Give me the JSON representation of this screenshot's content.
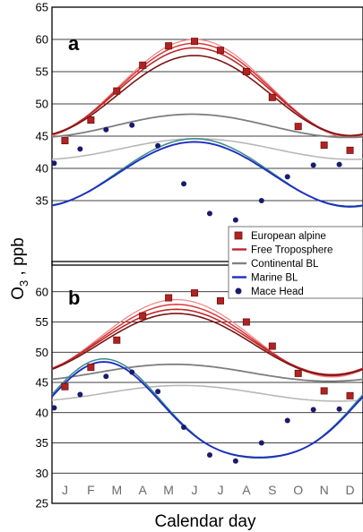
{
  "chart_data": {
    "type": "line",
    "xlabel": "Calendar day",
    "ylabel_main": "O",
    "ylabel_sub": "3",
    "ylabel_rest": " , ppb",
    "month_labels": [
      "J",
      "F",
      "M",
      "A",
      "M",
      "J",
      "J",
      "A",
      "S",
      "O",
      "N",
      "D"
    ],
    "legend": [
      {
        "name": "European alpine",
        "kind": "square",
        "color": "#b22222"
      },
      {
        "name": "Free Troposphere",
        "kind": "line",
        "color": "#c0282a"
      },
      {
        "name": "Continental BL",
        "kind": "line",
        "color": "#808080"
      },
      {
        "name": "Marine BL",
        "kind": "line",
        "color": "#1e2fbf"
      },
      {
        "name": "Mace Head",
        "kind": "dot",
        "color": "#1a1a6e"
      }
    ],
    "legend_placement": "right, between panels",
    "panels": [
      {
        "label": "a",
        "ylim": [
          25,
          65
        ],
        "yticks": [
          35,
          40,
          45,
          50,
          55,
          60,
          65
        ],
        "grid": true,
        "alpine_points": [
          44.3,
          47.5,
          52.0,
          56.0,
          59.0,
          59.7,
          58.3,
          55.0,
          51.0,
          46.5,
          43.6,
          42.8
        ],
        "mace_points": [
          40.8,
          43.0,
          46.0,
          46.7,
          43.5,
          37.6,
          33.0,
          32.0,
          35.0,
          38.7,
          40.5,
          40.6
        ],
        "curves": [
          {
            "series": "Free Troposphere",
            "color": "#ef8a8a",
            "width": 1.3,
            "mean": 52.4,
            "amp": 7.6,
            "peak_month": 6.0,
            "amp2": 0
          },
          {
            "series": "Free Troposphere",
            "color": "#d93a3a",
            "width": 1.5,
            "mean": 52.2,
            "amp": 7.2,
            "peak_month": 6.0,
            "amp2": 0
          },
          {
            "series": "Free Troposphere",
            "color": "#c0282a",
            "width": 1.6,
            "mean": 51.9,
            "amp": 6.8,
            "peak_month": 6.0,
            "amp2": 0
          },
          {
            "series": "Free Troposphere",
            "color": "#7a1515",
            "width": 1.6,
            "mean": 51.3,
            "amp": 6.2,
            "peak_month": 6.0,
            "amp2": 0
          },
          {
            "series": "Continental BL",
            "color": "#b8b8b8",
            "width": 1.6,
            "mean": 43.0,
            "amp": 1.6,
            "peak_month": 6.1,
            "amp2": 0
          },
          {
            "series": "Continental BL",
            "color": "#7e7e7e",
            "width": 1.8,
            "mean": 46.6,
            "amp": 1.8,
            "peak_month": 5.9,
            "amp2": 0
          },
          {
            "series": "Marine BL",
            "color": "#3a8a8a",
            "width": 1.5,
            "mean": 39.3,
            "amp": 5.3,
            "peak_month": 6.0,
            "amp2": 0
          },
          {
            "series": "Marine BL",
            "color": "#1e2fbf",
            "width": 1.9,
            "mean": 39.1,
            "amp": 5.0,
            "peak_month": 6.0,
            "amp2": 0
          }
        ]
      },
      {
        "label": "b",
        "ylim": [
          25,
          65
        ],
        "yticks": [
          25,
          30,
          35,
          40,
          45,
          50,
          55,
          60
        ],
        "grid": true,
        "alpine_points": [
          44.3,
          47.5,
          52.0,
          56.0,
          59.0,
          59.8,
          58.5,
          55.0,
          51.0,
          46.5,
          43.6,
          42.8
        ],
        "mace_points": [
          40.8,
          43.0,
          46.0,
          46.7,
          43.5,
          37.6,
          33.0,
          32.0,
          35.0,
          38.7,
          40.5,
          40.6
        ],
        "curves": [
          {
            "series": "Free Troposphere",
            "color": "#ef8a8a",
            "width": 1.3,
            "mean": 52.3,
            "amp": 6.4,
            "peak_month": 5.3,
            "amp2": 0
          },
          {
            "series": "Free Troposphere",
            "color": "#d93a3a",
            "width": 1.5,
            "mean": 52.0,
            "amp": 5.9,
            "peak_month": 5.3,
            "amp2": 0
          },
          {
            "series": "Free Troposphere",
            "color": "#c0282a",
            "width": 1.6,
            "mean": 51.7,
            "amp": 5.4,
            "peak_month": 5.3,
            "amp2": 0
          },
          {
            "series": "Free Troposphere",
            "color": "#7a1515",
            "width": 1.6,
            "mean": 51.3,
            "amp": 5.1,
            "peak_month": 5.3,
            "amp2": 0
          },
          {
            "series": "Continental BL",
            "color": "#b8b8b8",
            "width": 1.6,
            "mean": 43.2,
            "amp": 1.3,
            "peak_month": 5.5,
            "amp2": 0
          },
          {
            "series": "Continental BL",
            "color": "#7e7e7e",
            "width": 1.8,
            "mean": 46.6,
            "amp": 1.4,
            "peak_month": 5.2,
            "amp2": 0
          },
          {
            "series": "Marine BL",
            "color": "#3a8a8a",
            "width": 1.5,
            "mean": 39.5,
            "amp": 8.2,
            "peak_month": 2.5,
            "amp2": 1.2
          },
          {
            "series": "Marine BL",
            "color": "#1e2fbf",
            "width": 1.9,
            "mean": 39.3,
            "amp": 7.9,
            "peak_month": 2.5,
            "amp2": 1.2
          }
        ]
      }
    ]
  }
}
